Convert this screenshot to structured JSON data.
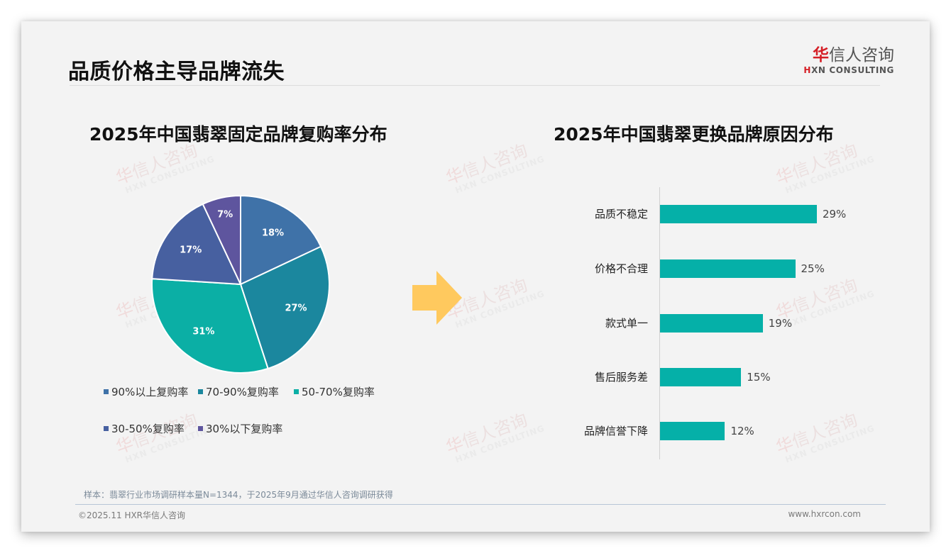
{
  "page": {
    "title": "品质价格主导品牌流失",
    "logo": {
      "cn_first": "华",
      "cn_rest": "信人咨询",
      "en_first": "H",
      "en_rest": "XN CONSULTING"
    },
    "watermark": {
      "cn_first": "华",
      "cn_rest": "信人咨询",
      "en": "HXN CONSULTING"
    },
    "arrow_color": "#FFC95E",
    "note": "样本：翡翠行业市场调研样本量N=1344，于2025年9月通过华信人咨询调研获得",
    "footer_left": "©2025.11 HXR华信人咨询",
    "footer_right": "www.hxrcon.com"
  },
  "chart_data": [
    {
      "type": "pie",
      "title": "2025年中国翡翠固定品牌复购率分布",
      "categories": [
        "90%以上复购率",
        "70-90%复购率",
        "50-70%复购率",
        "30-50%复购率",
        "30%以下复购率"
      ],
      "values": [
        18,
        27,
        31,
        17,
        7
      ],
      "labels": [
        "18%",
        "27%",
        "31%",
        "17%",
        "7%"
      ],
      "colors": [
        "#3F72A8",
        "#1B879E",
        "#0BAFA5",
        "#4760A0",
        "#5E559E"
      ],
      "start_angle": "12 o'clock",
      "direction": "clockwise",
      "legend_position": "bottom"
    },
    {
      "type": "bar",
      "orientation": "horizontal",
      "title": "2025年中国翡翠更换品牌原因分布",
      "categories": [
        "品质不稳定",
        "价格不合理",
        "款式单一",
        "售后服务差",
        "品牌信誉下降"
      ],
      "values": [
        29,
        25,
        19,
        15,
        12
      ],
      "labels": [
        "29%",
        "25%",
        "19%",
        "15%",
        "12%"
      ],
      "color": "#05B0A8",
      "xlabel": "",
      "ylabel": "",
      "grid": false
    }
  ]
}
